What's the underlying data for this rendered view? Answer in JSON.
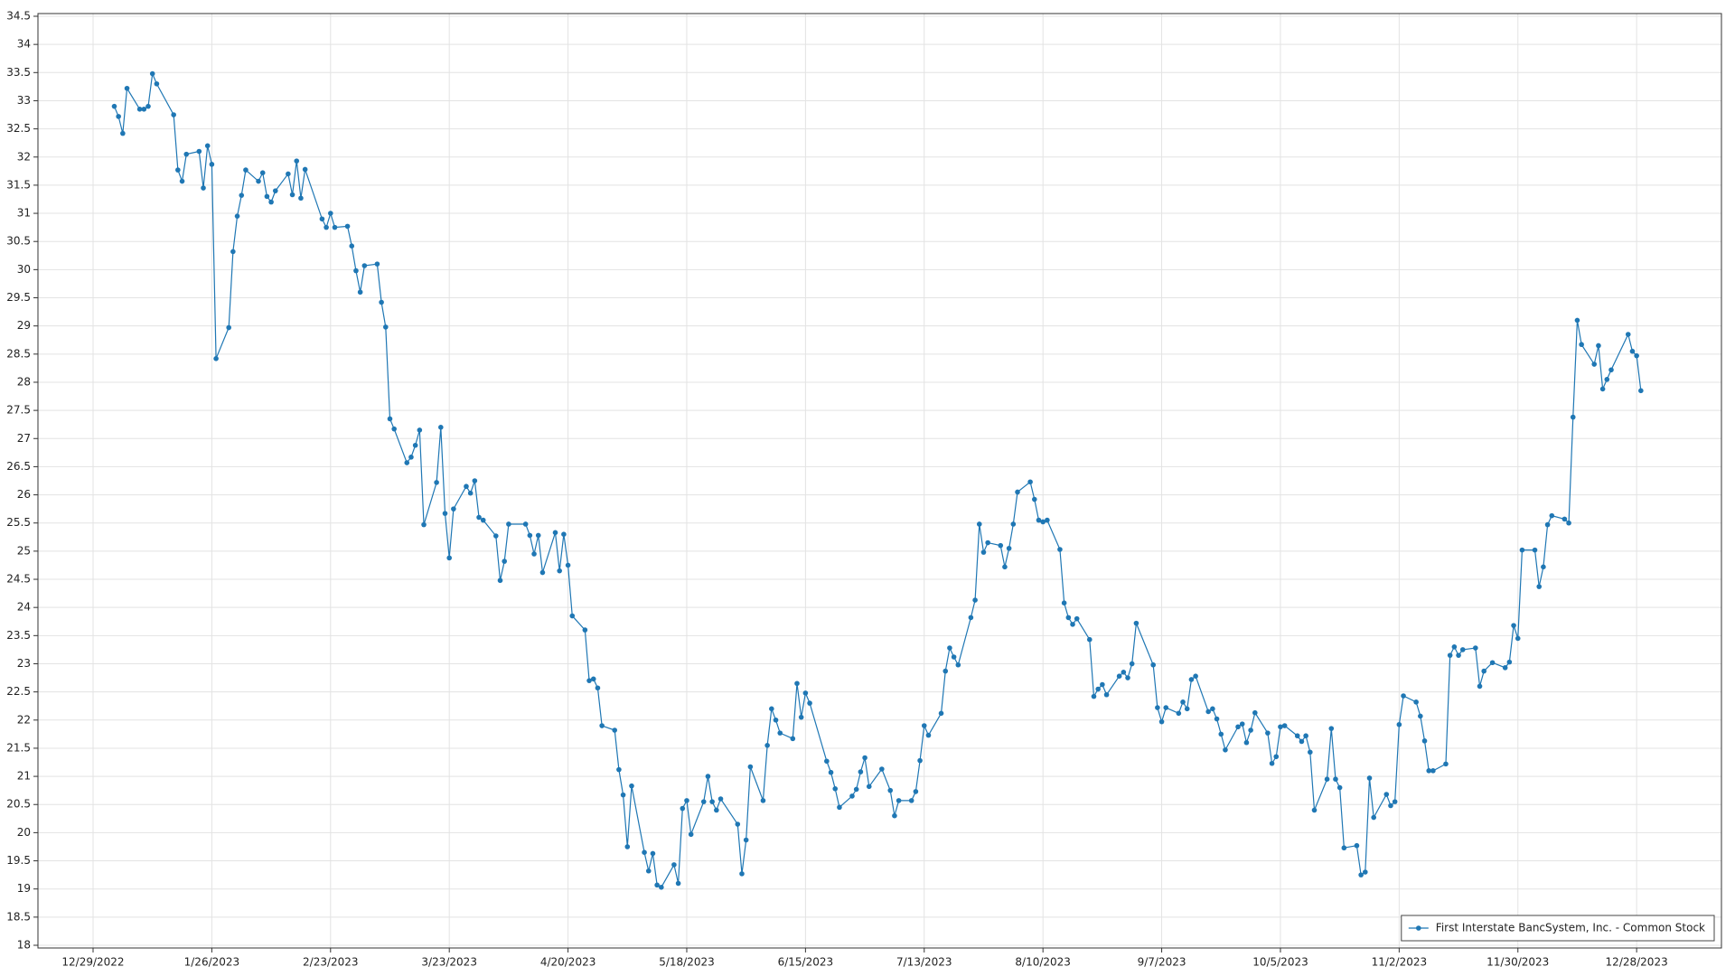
{
  "chart_data": {
    "type": "line",
    "x": [
      "2023-01-03",
      "2023-01-04",
      "2023-01-05",
      "2023-01-06",
      "2023-01-09",
      "2023-01-10",
      "2023-01-11",
      "2023-01-12",
      "2023-01-13",
      "2023-01-17",
      "2023-01-18",
      "2023-01-19",
      "2023-01-20",
      "2023-01-23",
      "2023-01-24",
      "2023-01-25",
      "2023-01-26",
      "2023-01-27",
      "2023-01-30",
      "2023-01-31",
      "2023-02-01",
      "2023-02-02",
      "2023-02-03",
      "2023-02-06",
      "2023-02-07",
      "2023-02-08",
      "2023-02-09",
      "2023-02-10",
      "2023-02-13",
      "2023-02-14",
      "2023-02-15",
      "2023-02-16",
      "2023-02-17",
      "2023-02-21",
      "2023-02-22",
      "2023-02-23",
      "2023-02-24",
      "2023-02-27",
      "2023-02-28",
      "2023-03-01",
      "2023-03-02",
      "2023-03-03",
      "2023-03-06",
      "2023-03-07",
      "2023-03-08",
      "2023-03-09",
      "2023-03-10",
      "2023-03-13",
      "2023-03-14",
      "2023-03-15",
      "2023-03-16",
      "2023-03-17",
      "2023-03-20",
      "2023-03-21",
      "2023-03-22",
      "2023-03-23",
      "2023-03-24",
      "2023-03-27",
      "2023-03-28",
      "2023-03-29",
      "2023-03-30",
      "2023-03-31",
      "2023-04-03",
      "2023-04-04",
      "2023-04-05",
      "2023-04-06",
      "2023-04-10",
      "2023-04-11",
      "2023-04-12",
      "2023-04-13",
      "2023-04-14",
      "2023-04-17",
      "2023-04-18",
      "2023-04-19",
      "2023-04-20",
      "2023-04-21",
      "2023-04-24",
      "2023-04-25",
      "2023-04-26",
      "2023-04-27",
      "2023-04-28",
      "2023-05-01",
      "2023-05-02",
      "2023-05-03",
      "2023-05-04",
      "2023-05-05",
      "2023-05-08",
      "2023-05-09",
      "2023-05-10",
      "2023-05-11",
      "2023-05-12",
      "2023-05-15",
      "2023-05-16",
      "2023-05-17",
      "2023-05-18",
      "2023-05-19",
      "2023-05-22",
      "2023-05-23",
      "2023-05-24",
      "2023-05-25",
      "2023-05-26",
      "2023-05-30",
      "2023-05-31",
      "2023-06-01",
      "2023-06-02",
      "2023-06-05",
      "2023-06-06",
      "2023-06-07",
      "2023-06-08",
      "2023-06-09",
      "2023-06-12",
      "2023-06-13",
      "2023-06-14",
      "2023-06-15",
      "2023-06-16",
      "2023-06-20",
      "2023-06-21",
      "2023-06-22",
      "2023-06-23",
      "2023-06-26",
      "2023-06-27",
      "2023-06-28",
      "2023-06-29",
      "2023-06-30",
      "2023-07-03",
      "2023-07-05",
      "2023-07-06",
      "2023-07-07",
      "2023-07-10",
      "2023-07-11",
      "2023-07-12",
      "2023-07-13",
      "2023-07-14",
      "2023-07-17",
      "2023-07-18",
      "2023-07-19",
      "2023-07-20",
      "2023-07-21",
      "2023-07-24",
      "2023-07-25",
      "2023-07-26",
      "2023-07-27",
      "2023-07-28",
      "2023-07-31",
      "2023-08-01",
      "2023-08-02",
      "2023-08-03",
      "2023-08-04",
      "2023-08-07",
      "2023-08-08",
      "2023-08-09",
      "2023-08-10",
      "2023-08-11",
      "2023-08-14",
      "2023-08-15",
      "2023-08-16",
      "2023-08-17",
      "2023-08-18",
      "2023-08-21",
      "2023-08-22",
      "2023-08-23",
      "2023-08-24",
      "2023-08-25",
      "2023-08-28",
      "2023-08-29",
      "2023-08-30",
      "2023-08-31",
      "2023-09-01",
      "2023-09-05",
      "2023-09-06",
      "2023-09-07",
      "2023-09-08",
      "2023-09-11",
      "2023-09-12",
      "2023-09-13",
      "2023-09-14",
      "2023-09-15",
      "2023-09-18",
      "2023-09-19",
      "2023-09-20",
      "2023-09-21",
      "2023-09-22",
      "2023-09-25",
      "2023-09-26",
      "2023-09-27",
      "2023-09-28",
      "2023-09-29",
      "2023-10-02",
      "2023-10-03",
      "2023-10-04",
      "2023-10-05",
      "2023-10-06",
      "2023-10-09",
      "2023-10-10",
      "2023-10-11",
      "2023-10-12",
      "2023-10-13",
      "2023-10-16",
      "2023-10-17",
      "2023-10-18",
      "2023-10-19",
      "2023-10-20",
      "2023-10-23",
      "2023-10-24",
      "2023-10-25",
      "2023-10-26",
      "2023-10-27",
      "2023-10-30",
      "2023-10-31",
      "2023-11-01",
      "2023-11-02",
      "2023-11-03",
      "2023-11-06",
      "2023-11-07",
      "2023-11-08",
      "2023-11-09",
      "2023-11-10",
      "2023-11-13",
      "2023-11-14",
      "2023-11-15",
      "2023-11-16",
      "2023-11-17",
      "2023-11-20",
      "2023-11-21",
      "2023-11-22",
      "2023-11-24",
      "2023-11-27",
      "2023-11-28",
      "2023-11-29",
      "2023-11-30",
      "2023-12-01",
      "2023-12-04",
      "2023-12-05",
      "2023-12-06",
      "2023-12-07",
      "2023-12-08",
      "2023-12-11",
      "2023-12-12",
      "2023-12-13",
      "2023-12-14",
      "2023-12-15",
      "2023-12-18",
      "2023-12-19",
      "2023-12-20",
      "2023-12-21",
      "2023-12-22",
      "2023-12-26",
      "2023-12-27",
      "2023-12-28",
      "2023-12-29"
    ],
    "series": [
      {
        "name": "First Interstate BancSystem, Inc. - Common Stock",
        "color": "#1f77b4",
        "values": [
          32.9,
          32.72,
          32.42,
          33.22,
          32.85,
          32.85,
          32.9,
          33.48,
          33.3,
          32.75,
          31.77,
          31.57,
          32.05,
          32.1,
          31.45,
          32.2,
          31.87,
          28.42,
          28.97,
          30.32,
          30.95,
          31.32,
          31.77,
          31.57,
          31.72,
          31.3,
          31.2,
          31.4,
          31.7,
          31.33,
          31.93,
          31.27,
          31.78,
          30.9,
          30.75,
          31.0,
          30.75,
          30.77,
          30.42,
          29.98,
          29.6,
          30.07,
          30.1,
          29.42,
          28.98,
          27.35,
          27.17,
          26.57,
          26.67,
          26.88,
          27.15,
          25.47,
          26.22,
          27.2,
          25.67,
          24.88,
          25.75,
          26.15,
          26.03,
          26.25,
          25.6,
          25.55,
          25.27,
          24.48,
          24.82,
          25.48,
          25.48,
          25.28,
          24.95,
          25.28,
          24.62,
          25.33,
          24.65,
          25.3,
          24.75,
          23.85,
          23.6,
          22.7,
          22.73,
          22.57,
          21.9,
          21.82,
          21.12,
          20.67,
          19.75,
          20.83,
          19.65,
          19.32,
          19.63,
          19.07,
          19.03,
          19.43,
          19.1,
          20.43,
          20.57,
          19.97,
          20.55,
          21.0,
          20.55,
          20.4,
          20.6,
          20.15,
          19.27,
          19.87,
          21.17,
          20.57,
          21.55,
          22.2,
          22.0,
          21.77,
          21.67,
          22.65,
          22.05,
          22.48,
          22.3,
          21.27,
          21.07,
          20.78,
          20.45,
          20.65,
          20.77,
          21.08,
          21.33,
          20.82,
          21.13,
          20.75,
          20.3,
          20.57,
          20.57,
          20.73,
          21.28,
          21.9,
          21.73,
          22.12,
          22.87,
          23.28,
          23.12,
          22.98,
          23.82,
          24.13,
          25.48,
          24.98,
          25.15,
          25.1,
          24.72,
          25.05,
          25.48,
          26.05,
          26.23,
          25.92,
          25.55,
          25.52,
          25.55,
          25.03,
          24.08,
          23.82,
          23.7,
          23.8,
          23.43,
          22.42,
          22.55,
          22.63,
          22.45,
          22.78,
          22.85,
          22.75,
          23.0,
          23.72,
          22.98,
          22.22,
          21.97,
          22.22,
          22.12,
          22.32,
          22.2,
          22.72,
          22.78,
          22.15,
          22.2,
          22.02,
          21.75,
          21.47,
          21.88,
          21.93,
          21.6,
          21.82,
          22.13,
          21.77,
          21.23,
          21.35,
          21.88,
          21.9,
          21.72,
          21.62,
          21.72,
          21.43,
          20.4,
          20.95,
          21.85,
          20.95,
          20.8,
          19.73,
          19.77,
          19.25,
          19.3,
          20.97,
          20.27,
          20.68,
          20.48,
          20.55,
          21.92,
          22.43,
          22.32,
          22.07,
          21.63,
          21.1,
          21.1,
          21.22,
          23.15,
          23.3,
          23.15,
          23.25,
          23.28,
          22.6,
          22.87,
          23.02,
          22.93,
          23.03,
          23.68,
          23.45,
          25.02,
          25.02,
          24.37,
          24.72,
          25.47,
          25.63,
          25.57,
          25.5,
          27.38,
          29.1,
          28.67,
          28.32,
          28.65,
          27.88,
          28.05,
          28.22,
          28.85,
          28.55,
          28.47,
          27.85
        ]
      }
    ],
    "xlim": [
      "2022-12-16",
      "2024-01-17"
    ],
    "xticks": [
      {
        "value": "2022-12-29",
        "label": "12/29/2022"
      },
      {
        "value": "2023-01-26",
        "label": "1/26/2023"
      },
      {
        "value": "2023-02-23",
        "label": "2/23/2023"
      },
      {
        "value": "2023-03-23",
        "label": "3/23/2023"
      },
      {
        "value": "2023-04-20",
        "label": "4/20/2023"
      },
      {
        "value": "2023-05-18",
        "label": "5/18/2023"
      },
      {
        "value": "2023-06-15",
        "label": "6/15/2023"
      },
      {
        "value": "2023-07-13",
        "label": "7/13/2023"
      },
      {
        "value": "2023-08-10",
        "label": "8/10/2023"
      },
      {
        "value": "2023-09-07",
        "label": "9/7/2023"
      },
      {
        "value": "2023-10-05",
        "label": "10/5/2023"
      },
      {
        "value": "2023-11-02",
        "label": "11/2/2023"
      },
      {
        "value": "2023-11-30",
        "label": "11/30/2023"
      },
      {
        "value": "2023-12-28",
        "label": "12/28/2023"
      }
    ],
    "ylim": [
      18,
      34.5
    ],
    "yticks": [
      18,
      18.5,
      19,
      19.5,
      20,
      20.5,
      21,
      21.5,
      22,
      22.5,
      23,
      23.5,
      24,
      24.5,
      25,
      25.5,
      26,
      26.5,
      27,
      27.5,
      28,
      28.5,
      29,
      29.5,
      30,
      30.5,
      31,
      31.5,
      32,
      32.5,
      33,
      33.5,
      34,
      34.5
    ],
    "grid": true,
    "legend": "lower right"
  }
}
